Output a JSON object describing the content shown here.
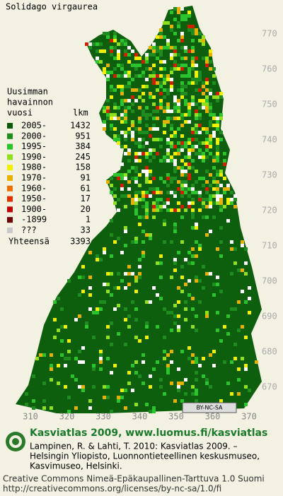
{
  "header": {
    "title": "Solidago virgaurea"
  },
  "legend": {
    "heading": [
      "Uusimman",
      "havainnon",
      "vuosi"
    ],
    "count_heading": "lkm",
    "rows": [
      {
        "label": "2005-",
        "count": 1432,
        "color": "#0a5a0a"
      },
      {
        "label": "2000-",
        "count": 951,
        "color": "#1e8c1e"
      },
      {
        "label": "1995-",
        "count": 384,
        "color": "#2cc42c"
      },
      {
        "label": "1990-",
        "count": 245,
        "color": "#90e020"
      },
      {
        "label": "1980-",
        "count": 158,
        "color": "#f0f000"
      },
      {
        "label": "1970-",
        "count": 91,
        "color": "#e8b000"
      },
      {
        "label": "1960-",
        "count": 61,
        "color": "#f07000"
      },
      {
        "label": "1950-",
        "count": 17,
        "color": "#e03000"
      },
      {
        "label": "1900-",
        "count": 20,
        "color": "#c00000"
      },
      {
        "label": "-1899",
        "count": 1,
        "color": "#700000"
      },
      {
        "label": "???",
        "count": 33,
        "color": "#c8c8c8"
      }
    ],
    "total_label": "Yhteensä",
    "total": 3393
  },
  "map": {
    "x_labels": [
      310,
      320,
      330,
      340,
      350,
      360,
      370
    ],
    "y_labels": [
      670,
      680,
      690,
      700,
      710,
      720,
      730,
      740,
      750,
      760,
      770
    ],
    "license_badge": "BY-NC-SA"
  },
  "footer": {
    "site": "Kasviatlas 2009, www.luomus.fi/kasviatlas",
    "citation": [
      "Lampinen, R. & Lahti, T. 2010: Kasviatlas 2009. –",
      "Helsingin Yliopisto, Luonnontieteellinen keskusmuseo,",
      "Kasvimuseo, Helsinki."
    ],
    "license": [
      "Creative Commons Nimeä-Epäkaupallinen-Tarttuva 1.0 Suomi",
      "http://creativecommons.org/licenses/by-nc-sa/1.0/fi"
    ]
  }
}
